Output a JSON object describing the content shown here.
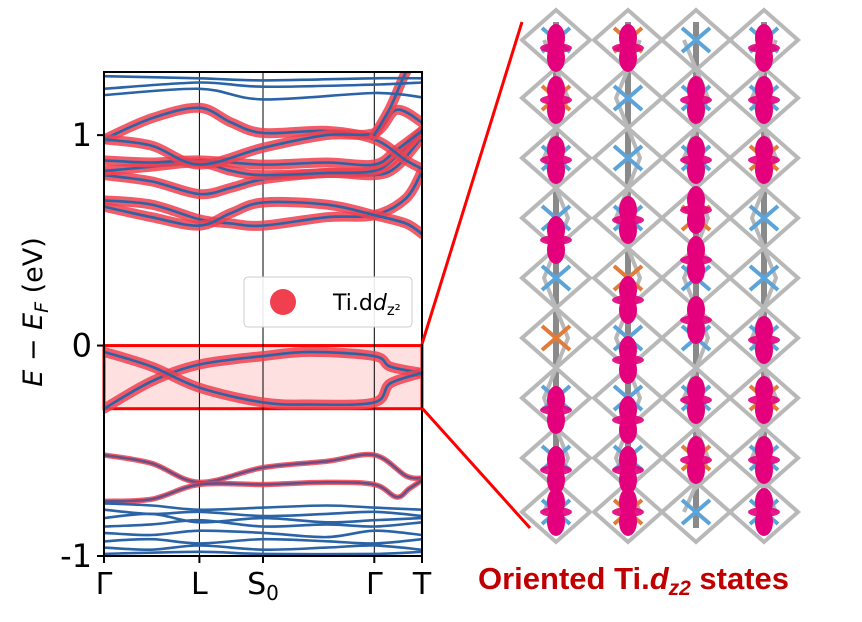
{
  "chart_data": {
    "type": "line",
    "ylabel": "E − E_F (eV)",
    "ylim": [
      -1.0,
      1.3
    ],
    "yticks": [
      {
        "value": 1,
        "label": "1"
      },
      {
        "value": 0,
        "label": "0"
      },
      {
        "value": -1,
        "label": "-1"
      }
    ],
    "kpoints": [
      {
        "x": 0.0,
        "label": "Γ"
      },
      {
        "x": 0.3,
        "label": "L"
      },
      {
        "x": 0.5,
        "label": "S₀"
      },
      {
        "x": 0.85,
        "label": "Γ"
      },
      {
        "x": 1.0,
        "label": "T"
      }
    ],
    "xlim": [
      0.0,
      1.0
    ],
    "legend": {
      "label": "Ti.d_z²",
      "placement": "center-right",
      "color": "#f0404f"
    },
    "highlight": {
      "ymin": -0.3,
      "ymax": 0.0,
      "color": "#ff0000"
    },
    "band_color": "#2a63a6",
    "projection_color": "#f0404f",
    "series": [
      {
        "x": [
          0,
          0.15,
          0.3,
          0.5,
          0.65,
          0.85,
          0.9,
          1.0
        ],
        "values": [
          -0.3,
          -0.17,
          -0.09,
          -0.05,
          -0.03,
          -0.05,
          -0.1,
          -0.13
        ],
        "weight": 1
      },
      {
        "x": [
          0,
          0.15,
          0.3,
          0.5,
          0.65,
          0.85,
          0.9,
          1.0
        ],
        "values": [
          -0.03,
          -0.1,
          -0.2,
          -0.27,
          -0.28,
          -0.27,
          -0.18,
          -0.13
        ],
        "weight": 1
      },
      {
        "x": [
          0,
          0.15,
          0.3,
          0.4,
          0.5,
          0.7,
          0.85,
          0.95,
          1.0
        ],
        "values": [
          0.69,
          0.67,
          0.6,
          0.58,
          0.57,
          0.61,
          0.62,
          0.7,
          0.83
        ],
        "weight": 1
      },
      {
        "x": [
          0,
          0.15,
          0.3,
          0.4,
          0.5,
          0.7,
          0.85,
          0.95,
          1.0
        ],
        "values": [
          0.66,
          0.61,
          0.57,
          0.63,
          0.68,
          0.67,
          0.62,
          0.58,
          0.53
        ],
        "weight": 1
      },
      {
        "x": [
          0,
          0.15,
          0.3,
          0.4,
          0.5,
          0.7,
          0.85,
          0.92,
          1.0
        ],
        "values": [
          0.81,
          0.78,
          0.72,
          0.75,
          0.79,
          0.82,
          0.81,
          0.85,
          0.99
        ],
        "weight": 1
      },
      {
        "x": [
          0,
          0.15,
          0.3,
          0.4,
          0.5,
          0.7,
          0.85,
          0.92,
          1.0
        ],
        "values": [
          0.83,
          0.85,
          0.87,
          0.83,
          0.81,
          0.82,
          0.83,
          0.9,
          1.02
        ],
        "weight": 1
      },
      {
        "x": [
          0,
          0.15,
          0.3,
          0.5,
          0.7,
          0.85,
          0.92,
          1.0
        ],
        "values": [
          0.88,
          0.87,
          0.88,
          0.86,
          0.87,
          0.86,
          0.93,
          1.02
        ],
        "weight": 1
      },
      {
        "x": [
          0,
          0.15,
          0.3,
          0.4,
          0.5,
          0.7,
          0.85,
          0.95,
          1.0
        ],
        "values": [
          0.98,
          1.08,
          1.13,
          1.06,
          1.01,
          1.02,
          0.98,
          0.88,
          0.84
        ],
        "weight": 1
      },
      {
        "x": [
          0,
          0.15,
          0.3,
          0.5,
          0.7,
          0.85,
          0.92,
          1.0
        ],
        "values": [
          0.98,
          0.95,
          0.86,
          0.94,
          1.0,
          1.01,
          1.12,
          1.06
        ],
        "weight": 1
      },
      {
        "x": [
          0.85,
          0.9,
          0.95,
          1.0
        ],
        "values": [
          1.0,
          1.13,
          1.3,
          1.4
        ],
        "weight": 1
      },
      {
        "x": [
          0,
          0.15,
          0.3,
          0.5,
          0.7,
          0.85,
          0.95,
          1.0
        ],
        "values": [
          -0.52,
          -0.56,
          -0.65,
          -0.58,
          -0.55,
          -0.52,
          -0.62,
          -0.63
        ],
        "weight": 0.35
      },
      {
        "x": [
          0,
          0.15,
          0.3,
          0.5,
          0.7,
          0.85,
          0.92,
          0.96,
          1.0
        ],
        "values": [
          -0.74,
          -0.73,
          -0.66,
          -0.66,
          -0.65,
          -0.66,
          -0.72,
          -0.68,
          -0.64
        ],
        "weight": 0.35
      },
      {
        "x": [
          0,
          0.3,
          0.5,
          0.85,
          1.0
        ],
        "values": [
          1.28,
          1.27,
          1.26,
          1.27,
          1.27
        ],
        "weight": 0
      },
      {
        "x": [
          0,
          0.3,
          0.5,
          0.85,
          1.0
        ],
        "values": [
          1.22,
          1.25,
          1.23,
          1.24,
          1.25
        ],
        "weight": 0
      },
      {
        "x": [
          0,
          0.3,
          0.5,
          0.85,
          1.0
        ],
        "values": [
          1.19,
          1.22,
          1.17,
          1.2,
          1.18
        ],
        "weight": 0
      },
      {
        "x": [
          0,
          0.15,
          0.3,
          0.5,
          0.7,
          0.85,
          1.0
        ],
        "values": [
          -0.75,
          -0.76,
          -0.78,
          -0.77,
          -0.76,
          -0.77,
          -0.78
        ],
        "weight": 0
      },
      {
        "x": [
          0,
          0.15,
          0.3,
          0.5,
          0.7,
          0.85,
          1.0
        ],
        "values": [
          -0.78,
          -0.8,
          -0.79,
          -0.81,
          -0.8,
          -0.79,
          -0.81
        ],
        "weight": 0
      },
      {
        "x": [
          0,
          0.15,
          0.3,
          0.5,
          0.7,
          0.85,
          1.0
        ],
        "values": [
          -0.82,
          -0.8,
          -0.84,
          -0.82,
          -0.84,
          -0.83,
          -0.82
        ],
        "weight": 0
      },
      {
        "x": [
          0,
          0.15,
          0.3,
          0.5,
          0.7,
          0.85,
          1.0
        ],
        "values": [
          -0.86,
          -0.85,
          -0.83,
          -0.86,
          -0.85,
          -0.86,
          -0.84
        ],
        "weight": 0
      },
      {
        "x": [
          0,
          0.15,
          0.3,
          0.5,
          0.7,
          0.85,
          1.0
        ],
        "values": [
          -0.89,
          -0.9,
          -0.88,
          -0.89,
          -0.91,
          -0.88,
          -0.9
        ],
        "weight": 0
      },
      {
        "x": [
          0,
          0.15,
          0.3,
          0.5,
          0.7,
          0.85,
          1.0
        ],
        "values": [
          -0.93,
          -0.92,
          -0.94,
          -0.92,
          -0.93,
          -0.94,
          -0.92
        ],
        "weight": 0
      },
      {
        "x": [
          0,
          0.15,
          0.3,
          0.5,
          0.7,
          0.85,
          1.0
        ],
        "values": [
          -0.96,
          -0.97,
          -0.95,
          -0.97,
          -0.96,
          -0.95,
          -0.97
        ],
        "weight": 0
      },
      {
        "x": [
          0,
          0.3,
          0.5,
          0.85,
          1.0
        ],
        "values": [
          -0.99,
          -0.98,
          -0.99,
          -0.99,
          -0.98
        ],
        "weight": 0
      }
    ]
  },
  "structure_image": {
    "caption": "Oriented Ti.d_z2 states",
    "atom_colors": {
      "bond": "#b8b8b8",
      "ti": "#5ba3d8",
      "other": "#e07b39",
      "orbital": "#e4007c"
    }
  }
}
